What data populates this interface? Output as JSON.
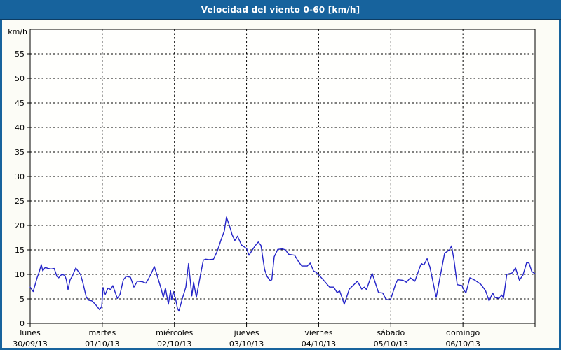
{
  "title_bar": {
    "title": "Velocidad del viento 0-60 [km/h]"
  },
  "colors": {
    "title_bar": "#17639d",
    "title_text": "#ffffff",
    "frame": "#17639d",
    "page_background": "#fcfcf6",
    "plot_background": "#fffffd",
    "gridline": "#000000",
    "series_line": "#2424c8",
    "label_text": "#000000"
  },
  "chart_data": {
    "type": "line",
    "title": "Velocidad del viento 0-60 [km/h]",
    "xlabel": "",
    "ylabel": "km/h",
    "ylim": [
      0,
      60
    ],
    "yticks": [
      0,
      5,
      10,
      15,
      20,
      25,
      30,
      35,
      40,
      45,
      50,
      55
    ],
    "grid": "dashed",
    "legend": "none",
    "x_axis": {
      "hours_per_day": 24,
      "total_hours": 168,
      "days": [
        {
          "name": "lunes",
          "date": "30/09/13"
        },
        {
          "name": "martes",
          "date": "01/10/13"
        },
        {
          "name": "miércoles",
          "date": "02/10/13"
        },
        {
          "name": "jueves",
          "date": "03/10/13"
        },
        {
          "name": "viernes",
          "date": "04/10/13"
        },
        {
          "name": "sábado",
          "date": "05/10/13"
        },
        {
          "name": "domingo",
          "date": "06/10/13"
        }
      ]
    },
    "series": [
      {
        "name": "Velocidad del viento",
        "unit": "km/h",
        "color": "#2424c8",
        "points": [
          [
            0,
            7.4
          ],
          [
            1,
            6.5
          ],
          [
            2.3,
            9.3
          ],
          [
            3,
            10.5
          ],
          [
            3.7,
            12.0
          ],
          [
            4.2,
            10.7
          ],
          [
            5,
            11.4
          ],
          [
            6,
            11.2
          ],
          [
            7,
            11.1
          ],
          [
            8,
            11.2
          ],
          [
            8.9,
            9.6
          ],
          [
            9.5,
            9.3
          ],
          [
            10.5,
            10.0
          ],
          [
            11.5,
            9.8
          ],
          [
            12,
            9.0
          ],
          [
            12.6,
            6.9
          ],
          [
            13.3,
            8.9
          ],
          [
            14,
            9.6
          ],
          [
            15.2,
            11.3
          ],
          [
            16,
            10.6
          ],
          [
            16.8,
            9.9
          ],
          [
            17.5,
            8.4
          ],
          [
            18.7,
            5.3
          ],
          [
            19.6,
            4.7
          ],
          [
            20.5,
            4.6
          ],
          [
            21.7,
            3.9
          ],
          [
            23.1,
            2.8
          ],
          [
            23.8,
            3.4
          ],
          [
            24.3,
            7.3
          ],
          [
            25,
            5.9
          ],
          [
            25.9,
            7.2
          ],
          [
            26.8,
            6.9
          ],
          [
            27.5,
            7.7
          ],
          [
            29,
            5.1
          ],
          [
            29.9,
            5.9
          ],
          [
            31,
            8.9
          ],
          [
            32,
            9.6
          ],
          [
            33.4,
            9.4
          ],
          [
            34.5,
            7.4
          ],
          [
            35.7,
            8.6
          ],
          [
            37.3,
            8.5
          ],
          [
            38.5,
            8.2
          ],
          [
            39.2,
            8.9
          ],
          [
            40.4,
            10.3
          ],
          [
            41.3,
            11.6
          ],
          [
            42,
            10.3
          ],
          [
            43.6,
            7.0
          ],
          [
            44.3,
            5.3
          ],
          [
            45,
            7.2
          ],
          [
            46,
            3.9
          ],
          [
            46.7,
            6.7
          ],
          [
            47.1,
            4.8
          ],
          [
            47.6,
            6.5
          ],
          [
            48.4,
            5.0
          ],
          [
            49,
            3.1
          ],
          [
            49.5,
            2.5
          ],
          [
            50.6,
            5.0
          ],
          [
            51.8,
            7.4
          ],
          [
            52.7,
            12.2
          ],
          [
            53.8,
            5.6
          ],
          [
            54.4,
            8.4
          ],
          [
            55.3,
            5.3
          ],
          [
            56.5,
            9.3
          ],
          [
            57.6,
            12.9
          ],
          [
            58.4,
            13.1
          ],
          [
            59.5,
            13.0
          ],
          [
            61,
            13.1
          ],
          [
            62.3,
            14.8
          ],
          [
            63.5,
            17.0
          ],
          [
            64.6,
            18.9
          ],
          [
            65.3,
            21.7
          ],
          [
            66.5,
            19.6
          ],
          [
            67.2,
            18.1
          ],
          [
            68.1,
            16.9
          ],
          [
            69,
            17.8
          ],
          [
            70.3,
            16.0
          ],
          [
            71,
            15.7
          ],
          [
            72,
            15.3
          ],
          [
            72.8,
            13.9
          ],
          [
            74.8,
            15.8
          ],
          [
            75.9,
            16.6
          ],
          [
            76.8,
            15.9
          ],
          [
            78,
            11.0
          ],
          [
            78.8,
            9.6
          ],
          [
            79.9,
            8.7
          ],
          [
            80.4,
            8.9
          ],
          [
            81.2,
            13.6
          ],
          [
            82.4,
            15.1
          ],
          [
            84,
            15.2
          ],
          [
            84.9,
            15.0
          ],
          [
            86,
            14.1
          ],
          [
            88,
            13.9
          ],
          [
            89.5,
            12.4
          ],
          [
            90.4,
            11.7
          ],
          [
            92.2,
            11.7
          ],
          [
            93.2,
            12.3
          ],
          [
            94.3,
            10.7
          ],
          [
            95.2,
            10.4
          ],
          [
            96,
            9.9
          ],
          [
            97.5,
            8.9
          ],
          [
            99.6,
            7.4
          ],
          [
            101,
            7.4
          ],
          [
            102.1,
            6.3
          ],
          [
            103,
            6.6
          ],
          [
            104.5,
            3.9
          ],
          [
            106.2,
            7.0
          ],
          [
            108.9,
            8.6
          ],
          [
            110.3,
            7.0
          ],
          [
            111.2,
            7.4
          ],
          [
            111.9,
            6.9
          ],
          [
            113.8,
            10.2
          ],
          [
            115.9,
            6.3
          ],
          [
            117.3,
            6.2
          ],
          [
            118.4,
            4.9
          ],
          [
            119.5,
            4.8
          ],
          [
            120,
            5.0
          ],
          [
            121.6,
            8.0
          ],
          [
            122.3,
            8.9
          ],
          [
            124,
            8.8
          ],
          [
            125.2,
            8.4
          ],
          [
            126.5,
            9.3
          ],
          [
            128,
            8.6
          ],
          [
            129.8,
            11.7
          ],
          [
            130.2,
            12.2
          ],
          [
            131,
            11.9
          ],
          [
            132.1,
            13.2
          ],
          [
            133,
            11.5
          ],
          [
            135.1,
            5.3
          ],
          [
            137.9,
            14.3
          ],
          [
            139.5,
            15.0
          ],
          [
            140.2,
            15.8
          ],
          [
            141,
            13.0
          ],
          [
            142.1,
            7.9
          ],
          [
            143.7,
            7.7
          ],
          [
            144,
            7.2
          ],
          [
            145,
            6.2
          ],
          [
            146.3,
            9.3
          ],
          [
            148,
            8.8
          ],
          [
            149.9,
            8.0
          ],
          [
            151.5,
            6.7
          ],
          [
            152.7,
            4.6
          ],
          [
            153.9,
            6.2
          ],
          [
            154.6,
            5.3
          ],
          [
            156,
            5.1
          ],
          [
            156.9,
            5.8
          ],
          [
            157.5,
            5.1
          ],
          [
            158.6,
            10.0
          ],
          [
            160.4,
            10.3
          ],
          [
            161.5,
            11.3
          ],
          [
            162.8,
            8.8
          ],
          [
            164,
            9.9
          ],
          [
            165.2,
            12.4
          ],
          [
            166,
            12.3
          ],
          [
            166.9,
            10.6
          ],
          [
            168,
            10.1
          ]
        ]
      }
    ]
  }
}
